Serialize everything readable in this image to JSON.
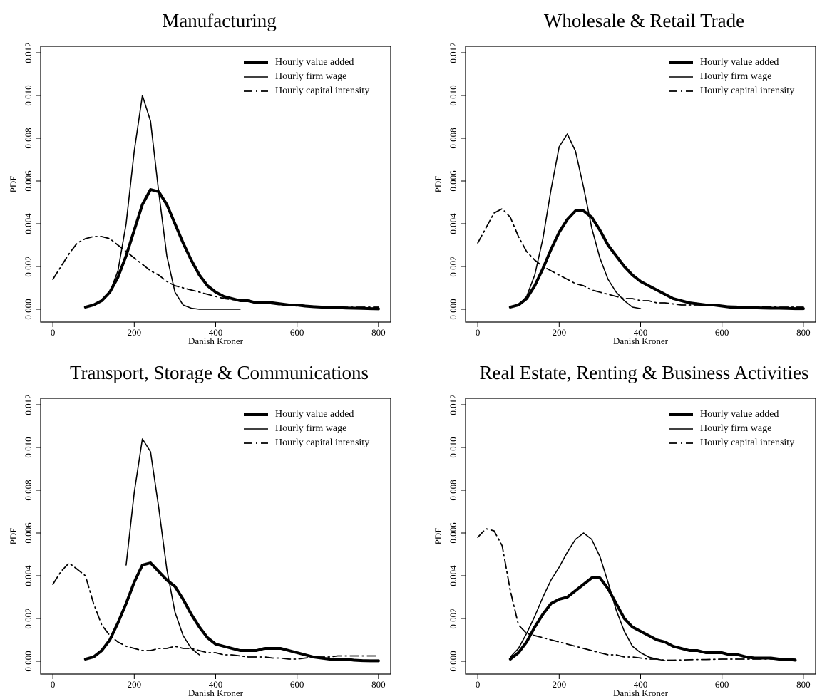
{
  "chart_data": [
    {
      "type": "line",
      "title": "Manufacturing",
      "xlabel": "Danish Kroner",
      "ylabel": "PDF",
      "legend": "upper right",
      "x": [
        0,
        20,
        40,
        60,
        80,
        100,
        120,
        140,
        160,
        180,
        200,
        220,
        240,
        260,
        280,
        300,
        320,
        340,
        360,
        380,
        400,
        420,
        440,
        460,
        480,
        500,
        520,
        540,
        560,
        580,
        600,
        620,
        640,
        660,
        680,
        700,
        720,
        740,
        760,
        780,
        800
      ],
      "xlim": [
        -30,
        830
      ],
      "ylim": [
        -0.0006,
        0.0123
      ],
      "xticks": [
        0,
        200,
        400,
        600,
        800
      ],
      "yticks": [
        {
          "value": 0,
          "label": "0.000"
        },
        {
          "value": 0.002,
          "label": "0.002"
        },
        {
          "value": 0.004,
          "label": "0.004"
        },
        {
          "value": 0.006,
          "label": "0.006"
        },
        {
          "value": 0.008,
          "label": "0.008"
        },
        {
          "value": 0.01,
          "label": "0.010"
        },
        {
          "value": 0.012,
          "label": "0.012"
        }
      ],
      "series": [
        {
          "name": "Hourly value added",
          "color": "#000000",
          "linewidth": 4,
          "linestyle": "solid",
          "values": [
            null,
            null,
            null,
            null,
            0.0001,
            0.0002,
            0.0004,
            0.0008,
            0.0015,
            0.0025,
            0.0037,
            0.0049,
            0.0056,
            0.0055,
            0.0049,
            0.004,
            0.0031,
            0.0023,
            0.0016,
            0.0011,
            0.0008,
            0.0006,
            0.0005,
            0.0004,
            0.0004,
            0.0003,
            0.0003,
            0.0003,
            0.00025,
            0.0002,
            0.0002,
            0.00015,
            0.00012,
            0.0001,
            0.0001,
            8e-05,
            6e-05,
            5e-05,
            4e-05,
            3e-05,
            2e-05
          ]
        },
        {
          "name": "Hourly firm wage",
          "color": "#000000",
          "linewidth": 1.6,
          "linestyle": "solid",
          "values": [
            null,
            null,
            null,
            null,
            null,
            null,
            0.0004,
            0.0008,
            0.0018,
            0.004,
            0.0074,
            0.01,
            0.0088,
            0.0055,
            0.0025,
            0.0008,
            0.0002,
            5e-05,
            0,
            0,
            0,
            0,
            0,
            0,
            null,
            null,
            null,
            null,
            null,
            null,
            null,
            null,
            null,
            null,
            null,
            null,
            null,
            null,
            null,
            null,
            null
          ]
        },
        {
          "name": "Hourly capital intensity",
          "color": "#000000",
          "linewidth": 1.8,
          "linestyle": "dashdot",
          "values": [
            0.0014,
            0.002,
            0.0026,
            0.0031,
            0.0033,
            0.0034,
            0.0034,
            0.0033,
            0.003,
            0.0027,
            0.0024,
            0.0021,
            0.0018,
            0.0016,
            0.0013,
            0.0011,
            0.001,
            0.0009,
            0.0008,
            0.0007,
            0.0006,
            0.0005,
            0.00045,
            0.0004,
            0.00035,
            0.0003,
            0.0003,
            0.00025,
            0.0002,
            0.0002,
            0.00015,
            0.00015,
            0.00012,
            0.0001,
            0.0001,
            0.0001,
            0.0001,
            0.0001,
            0.0001,
            0.0001,
            0.0001
          ]
        }
      ]
    },
    {
      "type": "line",
      "title": "Wholesale & Retail Trade",
      "xlabel": "Danish Kroner",
      "ylabel": "PDF",
      "legend": "upper right",
      "x": [
        0,
        20,
        40,
        60,
        80,
        100,
        120,
        140,
        160,
        180,
        200,
        220,
        240,
        260,
        280,
        300,
        320,
        340,
        360,
        380,
        400,
        420,
        440,
        460,
        480,
        500,
        520,
        540,
        560,
        580,
        600,
        620,
        640,
        660,
        680,
        700,
        720,
        740,
        760,
        780,
        800
      ],
      "xlim": [
        -30,
        830
      ],
      "ylim": [
        -0.0006,
        0.0123
      ],
      "xticks": [
        0,
        200,
        400,
        600,
        800
      ],
      "yticks": [
        {
          "value": 0,
          "label": "0.000"
        },
        {
          "value": 0.002,
          "label": "0.002"
        },
        {
          "value": 0.004,
          "label": "0.004"
        },
        {
          "value": 0.006,
          "label": "0.006"
        },
        {
          "value": 0.008,
          "label": "0.008"
        },
        {
          "value": 0.01,
          "label": "0.010"
        },
        {
          "value": 0.012,
          "label": "0.012"
        }
      ],
      "series": [
        {
          "name": "Hourly value added",
          "color": "#000000",
          "linewidth": 4,
          "linestyle": "solid",
          "values": [
            null,
            null,
            null,
            null,
            0.0001,
            0.0002,
            0.0005,
            0.0011,
            0.0019,
            0.0028,
            0.0036,
            0.0042,
            0.0046,
            0.0046,
            0.0043,
            0.0037,
            0.003,
            0.0025,
            0.002,
            0.0016,
            0.0013,
            0.0011,
            0.0009,
            0.0007,
            0.0005,
            0.0004,
            0.0003,
            0.00025,
            0.0002,
            0.0002,
            0.00015,
            0.0001,
            0.0001,
            8e-05,
            7e-05,
            6e-05,
            5e-05,
            5e-05,
            4e-05,
            3e-05,
            3e-05
          ]
        },
        {
          "name": "Hourly firm wage",
          "color": "#000000",
          "linewidth": 1.6,
          "linestyle": "solid",
          "values": [
            null,
            null,
            null,
            null,
            null,
            0.0002,
            0.0006,
            0.0016,
            0.0033,
            0.0056,
            0.0076,
            0.0082,
            0.0074,
            0.0057,
            0.0038,
            0.0024,
            0.0014,
            0.0008,
            0.0004,
            0.0001,
            3e-05,
            null,
            null,
            null,
            null,
            null,
            null,
            null,
            null,
            null,
            null,
            null,
            null,
            null,
            null,
            null,
            null,
            null,
            null,
            null,
            null
          ]
        },
        {
          "name": "Hourly capital intensity",
          "color": "#000000",
          "linewidth": 1.8,
          "linestyle": "dashdot",
          "values": [
            0.0031,
            0.0038,
            0.0045,
            0.0047,
            0.0043,
            0.0034,
            0.0027,
            0.0023,
            0.002,
            0.0018,
            0.0016,
            0.0014,
            0.0012,
            0.0011,
            0.0009,
            0.0008,
            0.0007,
            0.0006,
            0.0005,
            0.0005,
            0.0004,
            0.0004,
            0.0003,
            0.0003,
            0.00025,
            0.0002,
            0.0002,
            0.0002,
            0.0002,
            0.00018,
            0.00016,
            0.00015,
            0.00014,
            0.00013,
            0.00012,
            0.00012,
            0.00011,
            0.0001,
            0.0001,
            0.0001,
            0.0001
          ]
        }
      ]
    },
    {
      "type": "line",
      "title": "Transport, Storage & Communications",
      "xlabel": "Danish Kroner",
      "ylabel": "PDF",
      "legend": "upper right",
      "x": [
        0,
        20,
        40,
        60,
        80,
        100,
        120,
        140,
        160,
        180,
        200,
        220,
        240,
        260,
        280,
        300,
        320,
        340,
        360,
        380,
        400,
        420,
        440,
        460,
        480,
        500,
        520,
        540,
        560,
        580,
        600,
        620,
        640,
        660,
        680,
        700,
        720,
        740,
        760,
        780,
        800
      ],
      "xlim": [
        -30,
        830
      ],
      "ylim": [
        -0.0006,
        0.0123
      ],
      "xticks": [
        0,
        200,
        400,
        600,
        800
      ],
      "yticks": [
        {
          "value": 0,
          "label": "0.000"
        },
        {
          "value": 0.002,
          "label": "0.002"
        },
        {
          "value": 0.004,
          "label": "0.004"
        },
        {
          "value": 0.006,
          "label": "0.006"
        },
        {
          "value": 0.008,
          "label": "0.008"
        },
        {
          "value": 0.01,
          "label": "0.010"
        },
        {
          "value": 0.012,
          "label": "0.012"
        }
      ],
      "series": [
        {
          "name": "Hourly value added",
          "color": "#000000",
          "linewidth": 4,
          "linestyle": "solid",
          "values": [
            null,
            null,
            null,
            null,
            0.0001,
            0.0002,
            0.0005,
            0.001,
            0.0018,
            0.0027,
            0.0037,
            0.0045,
            0.0046,
            0.0042,
            0.0038,
            0.0035,
            0.0029,
            0.0022,
            0.0016,
            0.0011,
            0.0008,
            0.0007,
            0.0006,
            0.0005,
            0.0005,
            0.0005,
            0.0006,
            0.0006,
            0.0006,
            0.0005,
            0.0004,
            0.0003,
            0.0002,
            0.00015,
            0.0001,
            0.0001,
            0.0001,
            5e-05,
            3e-05,
            2e-05,
            2e-05
          ]
        },
        {
          "name": "Hourly firm wage",
          "color": "#000000",
          "linewidth": 1.6,
          "linestyle": "solid",
          "values": [
            null,
            null,
            null,
            null,
            null,
            null,
            null,
            null,
            null,
            0.0045,
            0.0079,
            0.0104,
            0.0098,
            0.0072,
            0.0043,
            0.0023,
            0.0012,
            0.0006,
            0.0003,
            null,
            null,
            null,
            null,
            null,
            null,
            null,
            null,
            null,
            null,
            null,
            null,
            null,
            null,
            null,
            null,
            null,
            null,
            null,
            null,
            null,
            null
          ]
        },
        {
          "name": "Hourly capital intensity",
          "color": "#000000",
          "linewidth": 1.8,
          "linestyle": "dashdot",
          "values": [
            0.0036,
            0.0042,
            0.0046,
            0.0043,
            0.004,
            0.0027,
            0.0017,
            0.0012,
            0.0009,
            0.0007,
            0.0006,
            0.0005,
            0.0005,
            0.0006,
            0.0006,
            0.0007,
            0.0006,
            0.0006,
            0.0005,
            0.0004,
            0.0004,
            0.0003,
            0.0003,
            0.00025,
            0.0002,
            0.0002,
            0.0002,
            0.00015,
            0.00015,
            0.0001,
            0.0001,
            0.00015,
            0.0002,
            0.0002,
            0.0002,
            0.00025,
            0.00025,
            0.00025,
            0.00025,
            0.00025,
            0.00025
          ]
        }
      ]
    },
    {
      "type": "line",
      "title": "Real Estate, Renting & Business Activities",
      "xlabel": "Danish Kroner",
      "ylabel": "PDF",
      "legend": "upper right",
      "x": [
        0,
        20,
        40,
        60,
        80,
        100,
        120,
        140,
        160,
        180,
        200,
        220,
        240,
        260,
        280,
        300,
        320,
        340,
        360,
        380,
        400,
        420,
        440,
        460,
        480,
        500,
        520,
        540,
        560,
        580,
        600,
        620,
        640,
        660,
        680,
        700,
        720,
        740,
        760,
        780,
        800
      ],
      "xlim": [
        -30,
        830
      ],
      "ylim": [
        -0.0006,
        0.0123
      ],
      "xticks": [
        0,
        200,
        400,
        600,
        800
      ],
      "yticks": [
        {
          "value": 0,
          "label": "0.000"
        },
        {
          "value": 0.002,
          "label": "0.002"
        },
        {
          "value": 0.004,
          "label": "0.004"
        },
        {
          "value": 0.006,
          "label": "0.006"
        },
        {
          "value": 0.008,
          "label": "0.008"
        },
        {
          "value": 0.01,
          "label": "0.010"
        },
        {
          "value": 0.012,
          "label": "0.012"
        }
      ],
      "series": [
        {
          "name": "Hourly value added",
          "color": "#000000",
          "linewidth": 4,
          "linestyle": "solid",
          "values": [
            null,
            null,
            null,
            null,
            0.0001,
            0.0004,
            0.0009,
            0.0016,
            0.0022,
            0.0027,
            0.0029,
            0.003,
            0.0033,
            0.0036,
            0.0039,
            0.0039,
            0.0034,
            0.0027,
            0.002,
            0.0016,
            0.0014,
            0.0012,
            0.001,
            0.0009,
            0.0007,
            0.0006,
            0.0005,
            0.0005,
            0.0004,
            0.0004,
            0.0004,
            0.0003,
            0.0003,
            0.0002,
            0.00015,
            0.00015,
            0.00015,
            0.0001,
            0.0001,
            5e-05,
            null
          ]
        },
        {
          "name": "Hourly firm wage",
          "color": "#000000",
          "linewidth": 1.6,
          "linestyle": "solid",
          "values": [
            null,
            null,
            null,
            null,
            0.0002,
            0.0006,
            0.0013,
            0.0021,
            0.003,
            0.0038,
            0.0044,
            0.0051,
            0.0057,
            0.006,
            0.0057,
            0.0049,
            0.0037,
            0.0024,
            0.0014,
            0.0007,
            0.0004,
            0.0002,
            0.0001,
            3e-05,
            null,
            null,
            null,
            null,
            null,
            null,
            null,
            null,
            null,
            null,
            null,
            null,
            null,
            null,
            null,
            null,
            null
          ]
        },
        {
          "name": "Hourly capital intensity",
          "color": "#000000",
          "linewidth": 1.8,
          "linestyle": "dashdot",
          "values": [
            0.0058,
            0.0062,
            0.0061,
            0.0054,
            0.0033,
            0.0017,
            0.0013,
            0.0012,
            0.0011,
            0.001,
            0.0009,
            0.0008,
            0.0007,
            0.0006,
            0.0005,
            0.0004,
            0.0003,
            0.0003,
            0.0002,
            0.0002,
            0.00015,
            0.0001,
            0.0001,
            5e-05,
            5e-05,
            6e-05,
            7e-05,
            8e-05,
            8e-05,
            9e-05,
            0.0001,
            0.0001,
            0.0001,
            0.0001,
            0.0001,
            0.0001,
            0.0001,
            0.0001,
            0.0001,
            0.0001,
            null
          ]
        }
      ]
    }
  ]
}
